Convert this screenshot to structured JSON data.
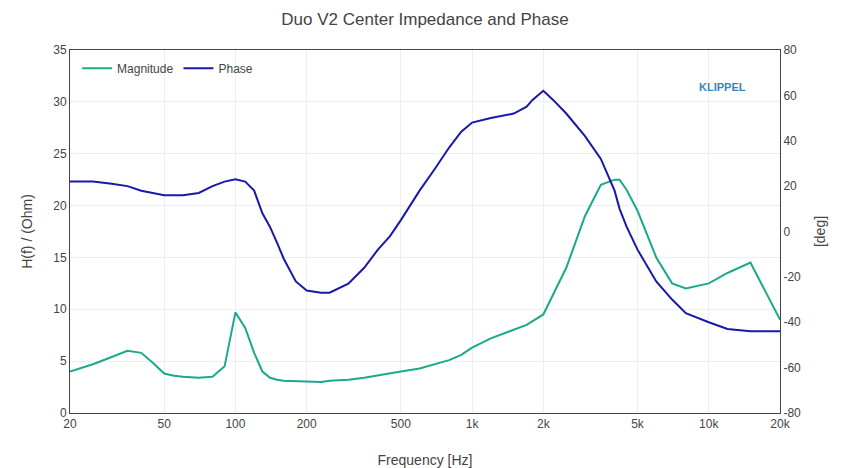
{
  "chart_data": {
    "type": "line",
    "title": "Duo V2 Center Impedance and Phase",
    "xlabel": "Frequency [Hz]",
    "ylabel": "H(f) / (Ohm)",
    "y2label": "[deg]",
    "log": "x",
    "grid": true,
    "legend": "upper left",
    "xlim": [
      20,
      20000
    ],
    "xticks": [
      20,
      50,
      100,
      200,
      500,
      {
        "value": 1000,
        "label": "1k"
      },
      {
        "value": 2000,
        "label": "2k"
      },
      {
        "value": 5000,
        "label": "5k"
      },
      {
        "value": 10000,
        "label": "10k"
      },
      {
        "value": 20000,
        "label": "20k"
      }
    ],
    "ylim": [
      0,
      35
    ],
    "yticks": [
      0,
      5,
      10,
      15,
      20,
      25,
      30,
      35
    ],
    "y2lim": [
      -80,
      80
    ],
    "y2ticks": [
      -80,
      -60,
      -40,
      -20,
      0,
      20,
      40,
      60,
      80
    ],
    "series": [
      {
        "name": "Magnitude",
        "color": "#1aaa8a",
        "x": [
          20,
          25,
          30,
          35,
          40,
          45,
          50,
          55,
          60,
          70,
          80,
          90,
          100,
          110,
          120,
          130,
          140,
          150,
          160,
          180,
          200,
          230,
          250,
          300,
          350,
          400,
          450,
          500,
          600,
          700,
          800,
          900,
          1000,
          1200,
          1500,
          1700,
          2000,
          2500,
          3000,
          3500,
          4000,
          4200,
          4500,
          5000,
          6000,
          7000,
          8000,
          10000,
          12000,
          15000,
          20000
        ],
        "values": [
          4.0,
          4.7,
          5.4,
          6.0,
          5.8,
          4.8,
          3.8,
          3.6,
          3.5,
          3.4,
          3.5,
          4.5,
          9.7,
          8.2,
          5.8,
          4.0,
          3.4,
          3.2,
          3.1,
          3.05,
          3.0,
          3.0,
          3.1,
          3.2,
          3.4,
          3.6,
          3.8,
          4.0,
          4.3,
          4.7,
          5.1,
          5.6,
          6.3,
          7.2,
          8.0,
          8.5,
          9.5,
          14.0,
          19.0,
          22.0,
          22.5,
          22.5,
          21.5,
          19.5,
          15.0,
          12.5,
          12.0,
          12.5,
          13.5,
          14.5,
          9.0
        ]
      },
      {
        "name": "Phase",
        "color": "#1818aa",
        "axis": "y2",
        "x": [
          20,
          25,
          30,
          35,
          40,
          45,
          50,
          55,
          60,
          70,
          80,
          90,
          100,
          110,
          120,
          130,
          140,
          150,
          160,
          180,
          200,
          230,
          250,
          300,
          350,
          400,
          450,
          500,
          600,
          700,
          800,
          900,
          1000,
          1200,
          1500,
          1700,
          1800,
          2000,
          2200,
          2500,
          3000,
          3500,
          4000,
          4200,
          4500,
          5000,
          6000,
          7000,
          8000,
          10000,
          12000,
          15000,
          20000
        ],
        "values": [
          22,
          22,
          21,
          20,
          18,
          17,
          16,
          16,
          16,
          17,
          20,
          22,
          23,
          22,
          18,
          8,
          2,
          -5,
          -12,
          -22,
          -26,
          -27,
          -27,
          -23,
          -16,
          -8,
          -2,
          5,
          18,
          28,
          37,
          44,
          48,
          50,
          52,
          55,
          58,
          62,
          58,
          52,
          42,
          32,
          18,
          10,
          2,
          -8,
          -22,
          -30,
          -36,
          -40,
          -43,
          -44,
          -44
        ]
      }
    ],
    "annotations": [
      {
        "text": "KLIPPEL"
      }
    ]
  }
}
